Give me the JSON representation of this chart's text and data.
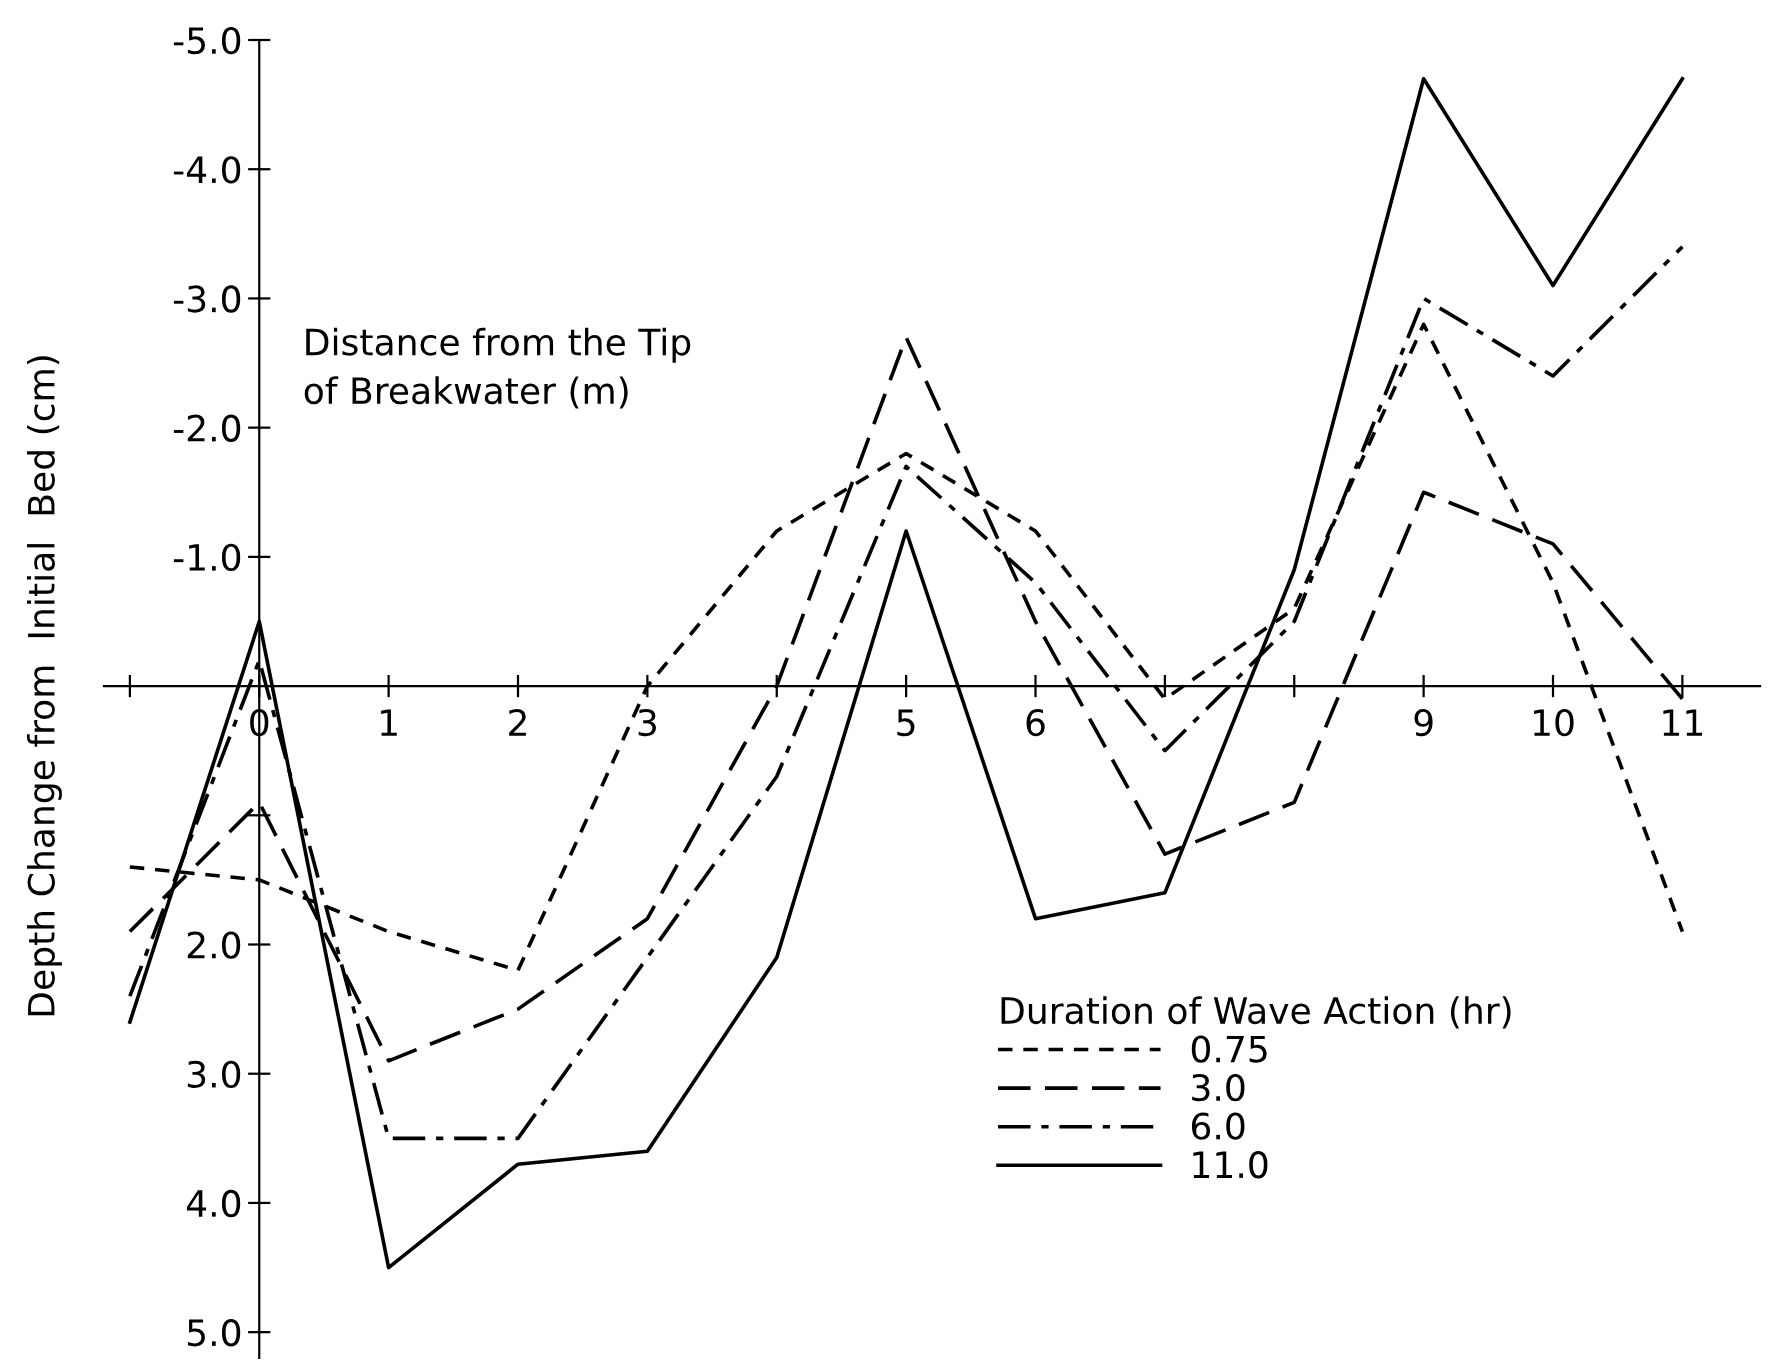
{
  "chart_data": {
    "type": "line",
    "xlabel": "Distance from the Tip\nof Breakwater (m)",
    "ylabel": "Depth Change from  Initial  Bed (cm)",
    "legend_title": "Duration of Wave Action (hr)",
    "x": [
      -1,
      0,
      1,
      2,
      3,
      4,
      5,
      6,
      7,
      8,
      9,
      10,
      11
    ],
    "series": [
      {
        "name": "0.75",
        "color": "#000000",
        "line_style": "dashed",
        "values": [
          1.4,
          1.5,
          1.9,
          2.2,
          0.0,
          -1.2,
          -1.8,
          -1.2,
          0.1,
          -0.6,
          -2.8,
          -0.8,
          1.9
        ]
      },
      {
        "name": "3.0",
        "color": "#000000",
        "line_style": "longdashed",
        "values": [
          1.9,
          0.9,
          2.9,
          2.5,
          1.8,
          0.0,
          -2.7,
          -0.5,
          1.3,
          0.9,
          -1.5,
          -1.1,
          0.1
        ]
      },
      {
        "name": "6.0",
        "color": "#000000",
        "line_style": "dashdot",
        "values": [
          2.4,
          -0.2,
          3.5,
          3.5,
          2.1,
          0.7,
          -1.7,
          -0.8,
          0.5,
          -0.5,
          -3.0,
          -2.4,
          -3.4
        ]
      },
      {
        "name": "11.0",
        "color": "#000000",
        "line_style": "solid",
        "values": [
          2.6,
          -0.5,
          4.5,
          3.7,
          3.6,
          2.1,
          -1.2,
          1.8,
          1.6,
          -0.9,
          -4.7,
          -3.1,
          -4.7
        ]
      }
    ],
    "xlim": [
      -1.2,
      11.6
    ],
    "xticks": [
      {
        "value": -1,
        "label": null
      },
      0,
      1,
      2,
      3,
      {
        "value": 4,
        "label": null
      },
      5,
      6,
      {
        "value": 7,
        "label": null
      },
      {
        "value": 8,
        "label": null
      },
      9,
      10,
      11
    ],
    "ylim": [
      5.2,
      -5.0
    ],
    "yticks": [
      {
        "value": -5,
        "label": "-5.0"
      },
      {
        "value": -4,
        "label": "-4.0"
      },
      {
        "value": -3,
        "label": "-3.0"
      },
      {
        "value": -2,
        "label": "-2.0"
      },
      {
        "value": -1,
        "label": "-1.0"
      },
      {
        "value": 1,
        "label": null
      },
      {
        "value": 2,
        "label": "2.0"
      },
      {
        "value": 3,
        "label": "3.0"
      },
      {
        "value": 4,
        "label": "4.0"
      },
      {
        "value": 5,
        "label": "5.0"
      }
    ],
    "grid": false,
    "legend": "bottom right",
    "marker": "none"
  }
}
